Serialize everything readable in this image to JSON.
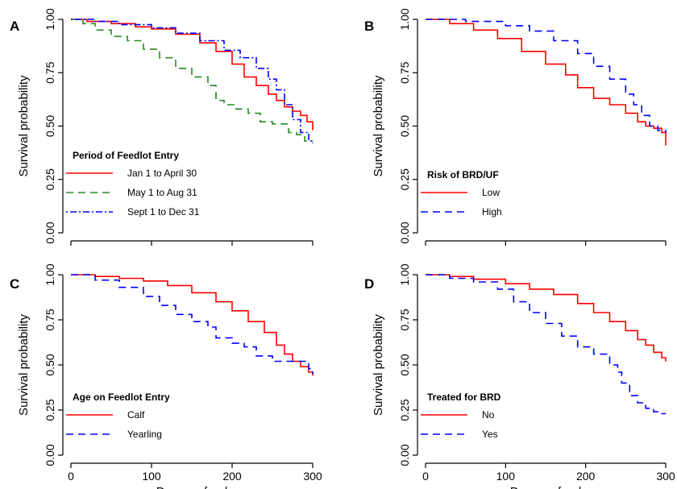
{
  "chart_data": [
    {
      "panel": "A",
      "type": "line",
      "xlabel": "",
      "ylabel": "Survival probability",
      "xlim": [
        0,
        300
      ],
      "ylim": [
        0,
        1
      ],
      "xticks": [
        0,
        100,
        200,
        300
      ],
      "xtick_labels": [],
      "yticks": [
        0,
        0.25,
        0.5,
        0.75,
        1.0
      ],
      "ytick_labels": [
        "0.00",
        "0.25",
        "0.50",
        "0.75",
        "1.00"
      ],
      "legend_title": "Period of Feedlot Entry",
      "legend_position": "bottom-left",
      "step": false,
      "series": [
        {
          "name": "Jan 1 to April 30",
          "color": "#ff0000",
          "dash": "solid",
          "x": [
            0,
            20,
            50,
            80,
            100,
            130,
            160,
            180,
            200,
            215,
            230,
            245,
            255,
            265,
            275,
            285,
            293,
            300
          ],
          "y": [
            1.0,
            0.99,
            0.98,
            0.965,
            0.955,
            0.93,
            0.89,
            0.85,
            0.79,
            0.73,
            0.69,
            0.65,
            0.62,
            0.59,
            0.57,
            0.55,
            0.52,
            0.48
          ]
        },
        {
          "name": "May 1 to Aug 31",
          "color": "#228b22",
          "dash": "long",
          "x": [
            0,
            15,
            30,
            50,
            70,
            90,
            110,
            130,
            150,
            170,
            180,
            190,
            205,
            220,
            235,
            250,
            265,
            270,
            280,
            290,
            300
          ],
          "y": [
            1.0,
            0.98,
            0.95,
            0.92,
            0.9,
            0.86,
            0.82,
            0.77,
            0.73,
            0.69,
            0.62,
            0.6,
            0.58,
            0.56,
            0.52,
            0.51,
            0.51,
            0.47,
            0.46,
            0.43,
            0.43
          ]
        },
        {
          "name": "Sept 1 to Dec 31",
          "color": "#0000ff",
          "dash": "dotdash",
          "x": [
            0,
            30,
            60,
            100,
            130,
            160,
            190,
            210,
            230,
            245,
            255,
            265,
            275,
            285,
            295,
            300
          ],
          "y": [
            1.0,
            0.99,
            0.975,
            0.96,
            0.935,
            0.9,
            0.855,
            0.82,
            0.77,
            0.72,
            0.67,
            0.6,
            0.53,
            0.47,
            0.43,
            0.42
          ]
        }
      ]
    },
    {
      "panel": "B",
      "type": "line",
      "xlabel": "",
      "ylabel": "Survival probability",
      "xlim": [
        0,
        300
      ],
      "ylim": [
        0,
        1
      ],
      "xticks": [
        0,
        100,
        200,
        300
      ],
      "xtick_labels": [],
      "yticks": [
        0,
        0.25,
        0.5,
        0.75,
        1.0
      ],
      "ytick_labels": [
        "0.00",
        "0.25",
        "0.50",
        "0.75",
        "1.00"
      ],
      "legend_title": "Risk of BRD/UF",
      "legend_position": "bottom-left",
      "step": false,
      "series": [
        {
          "name": "Low",
          "color": "#ff0000",
          "dash": "solid",
          "x": [
            0,
            30,
            60,
            90,
            120,
            150,
            175,
            190,
            210,
            230,
            250,
            265,
            275,
            285,
            295,
            300
          ],
          "y": [
            1.0,
            0.98,
            0.95,
            0.91,
            0.85,
            0.79,
            0.74,
            0.68,
            0.63,
            0.6,
            0.56,
            0.52,
            0.5,
            0.49,
            0.47,
            0.41
          ]
        },
        {
          "name": "High",
          "color": "#0000ff",
          "dash": "long",
          "x": [
            0,
            50,
            100,
            130,
            160,
            190,
            210,
            230,
            250,
            260,
            270,
            280,
            290,
            300
          ],
          "y": [
            1.0,
            0.99,
            0.97,
            0.945,
            0.9,
            0.84,
            0.78,
            0.72,
            0.65,
            0.6,
            0.55,
            0.5,
            0.48,
            0.47
          ]
        }
      ]
    },
    {
      "panel": "C",
      "type": "line",
      "xlabel": "Days on feed",
      "ylabel": "Survival probability",
      "xlim": [
        0,
        300
      ],
      "ylim": [
        0,
        1
      ],
      "xticks": [
        0,
        100,
        200,
        300
      ],
      "xtick_labels": [
        "0",
        "100",
        "200",
        "300"
      ],
      "yticks": [
        0,
        0.25,
        0.5,
        0.75,
        1.0
      ],
      "ytick_labels": [
        "0.00",
        "0.25",
        "0.50",
        "0.75",
        "1.00"
      ],
      "legend_title": "Age on Feedlot Entry",
      "legend_position": "bottom-left",
      "step": false,
      "series": [
        {
          "name": "Calf",
          "color": "#ff0000",
          "dash": "solid",
          "x": [
            0,
            30,
            60,
            90,
            120,
            150,
            180,
            200,
            220,
            240,
            255,
            265,
            275,
            285,
            295,
            300
          ],
          "y": [
            1.0,
            0.99,
            0.98,
            0.965,
            0.94,
            0.9,
            0.85,
            0.8,
            0.74,
            0.68,
            0.61,
            0.56,
            0.52,
            0.49,
            0.46,
            0.44
          ]
        },
        {
          "name": "Yearling",
          "color": "#0000ff",
          "dash": "long",
          "x": [
            0,
            30,
            60,
            90,
            110,
            130,
            150,
            170,
            180,
            200,
            215,
            230,
            250,
            270,
            285,
            295,
            300
          ],
          "y": [
            1.0,
            0.97,
            0.93,
            0.88,
            0.83,
            0.78,
            0.74,
            0.71,
            0.65,
            0.62,
            0.6,
            0.55,
            0.52,
            0.52,
            0.52,
            0.48,
            0.45
          ]
        }
      ]
    },
    {
      "panel": "D",
      "type": "line",
      "xlabel": "Days on feed",
      "ylabel": "Survival probability",
      "xlim": [
        0,
        300
      ],
      "ylim": [
        0,
        1
      ],
      "xticks": [
        0,
        100,
        200,
        300
      ],
      "xtick_labels": [
        "0",
        "100",
        "200",
        "300"
      ],
      "yticks": [
        0,
        0.25,
        0.5,
        0.75,
        1.0
      ],
      "ytick_labels": [
        "0.00",
        "0.25",
        "0.50",
        "0.75",
        "1.00"
      ],
      "legend_title": "Treated for BRD",
      "legend_position": "bottom-left",
      "step": false,
      "series": [
        {
          "name": "No",
          "color": "#ff0000",
          "dash": "solid",
          "x": [
            0,
            30,
            60,
            100,
            130,
            160,
            190,
            210,
            230,
            250,
            265,
            275,
            285,
            295,
            300
          ],
          "y": [
            1.0,
            0.99,
            0.975,
            0.95,
            0.92,
            0.89,
            0.84,
            0.79,
            0.74,
            0.69,
            0.64,
            0.61,
            0.57,
            0.54,
            0.52
          ]
        },
        {
          "name": "Yes",
          "color": "#0000ff",
          "dash": "long",
          "x": [
            0,
            30,
            60,
            90,
            110,
            130,
            150,
            170,
            190,
            210,
            230,
            240,
            245,
            255,
            265,
            275,
            285,
            295,
            300
          ],
          "y": [
            1.0,
            0.98,
            0.96,
            0.92,
            0.85,
            0.79,
            0.73,
            0.66,
            0.6,
            0.56,
            0.5,
            0.46,
            0.4,
            0.33,
            0.29,
            0.26,
            0.24,
            0.23,
            0.23
          ]
        }
      ]
    }
  ]
}
